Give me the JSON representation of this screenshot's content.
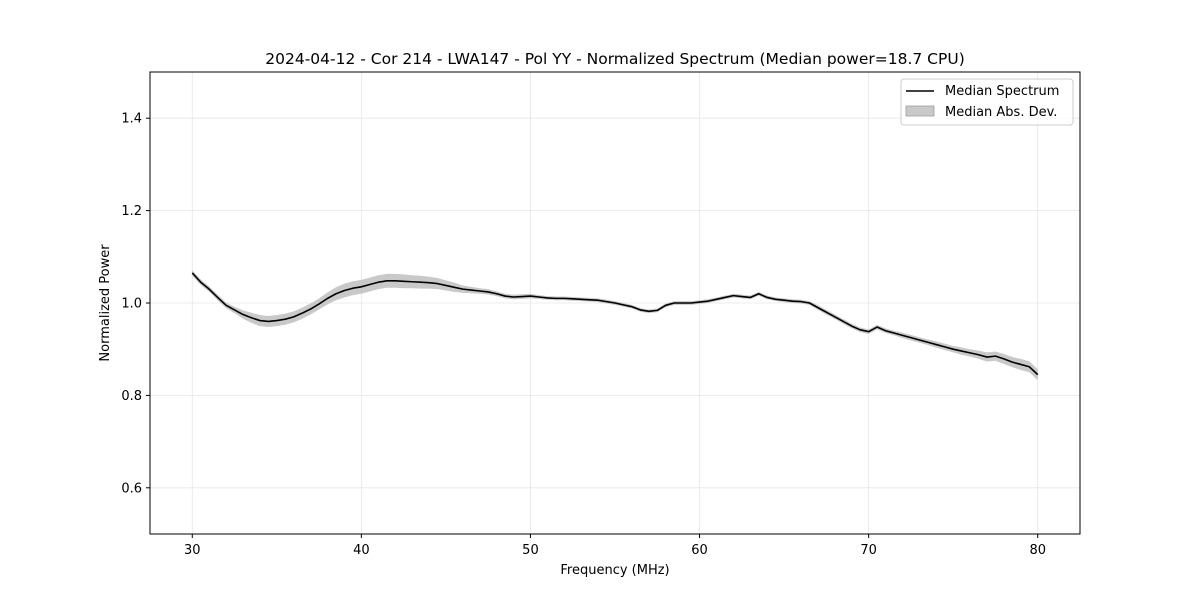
{
  "chart_data": {
    "type": "line",
    "title": "2024-04-12 - Cor 214 - LWA147 - Pol YY - Normalized Spectrum (Median power=18.7 CPU)",
    "xlabel": "Frequency (MHz)",
    "ylabel": "Normalized Power",
    "xlim": [
      27.5,
      82.5
    ],
    "ylim": [
      0.5,
      1.5
    ],
    "xticks": [
      30,
      40,
      50,
      60,
      70,
      80
    ],
    "yticks": [
      0.6,
      0.8,
      1.0,
      1.2,
      1.4
    ],
    "xtick_labels": [
      "30",
      "40",
      "50",
      "60",
      "70",
      "80"
    ],
    "ytick_labels": [
      "0.6",
      "0.8",
      "1.0",
      "1.2",
      "1.4"
    ],
    "grid": true,
    "legend_position": "top-right",
    "colors": {
      "line": "#000000",
      "band": "#c0c0c0",
      "grid": "#e6e6e6"
    },
    "series": [
      {
        "name": "Median Spectrum",
        "kind": "line",
        "x": [
          30.0,
          30.5,
          31.0,
          31.5,
          32.0,
          32.5,
          33.0,
          33.5,
          34.0,
          34.5,
          35.0,
          35.5,
          36.0,
          36.5,
          37.0,
          37.5,
          38.0,
          38.5,
          39.0,
          39.5,
          40.0,
          40.5,
          41.0,
          41.5,
          42.0,
          42.5,
          43.0,
          43.5,
          44.0,
          44.5,
          45.0,
          45.5,
          46.0,
          46.5,
          47.0,
          47.5,
          48.0,
          48.5,
          49.0,
          49.5,
          50.0,
          50.5,
          51.0,
          51.5,
          52.0,
          52.5,
          53.0,
          53.5,
          54.0,
          54.5,
          55.0,
          55.5,
          56.0,
          56.5,
          57.0,
          57.5,
          58.0,
          58.5,
          59.0,
          59.5,
          60.0,
          60.5,
          61.0,
          61.5,
          62.0,
          62.5,
          63.0,
          63.5,
          64.0,
          64.5,
          65.0,
          65.5,
          66.0,
          66.5,
          67.0,
          67.5,
          68.0,
          68.5,
          69.0,
          69.5,
          70.0,
          70.5,
          71.0,
          71.5,
          72.0,
          72.5,
          73.0,
          73.5,
          74.0,
          74.5,
          75.0,
          75.5,
          76.0,
          76.5,
          77.0,
          77.5,
          78.0,
          78.5,
          79.0,
          79.5,
          80.0
        ],
        "values": [
          1.065,
          1.045,
          1.03,
          1.012,
          0.995,
          0.985,
          0.975,
          0.968,
          0.962,
          0.96,
          0.962,
          0.965,
          0.97,
          0.978,
          0.987,
          0.998,
          1.01,
          1.02,
          1.027,
          1.032,
          1.035,
          1.04,
          1.045,
          1.048,
          1.048,
          1.047,
          1.046,
          1.045,
          1.044,
          1.042,
          1.038,
          1.034,
          1.03,
          1.028,
          1.026,
          1.024,
          1.02,
          1.015,
          1.013,
          1.014,
          1.015,
          1.013,
          1.011,
          1.01,
          1.01,
          1.009,
          1.008,
          1.007,
          1.006,
          1.003,
          1.0,
          0.996,
          0.992,
          0.985,
          0.982,
          0.984,
          0.995,
          1.0,
          1.0,
          1.0,
          1.002,
          1.004,
          1.008,
          1.012,
          1.016,
          1.014,
          1.012,
          1.02,
          1.012,
          1.008,
          1.006,
          1.004,
          1.003,
          1.0,
          0.99,
          0.98,
          0.97,
          0.96,
          0.95,
          0.942,
          0.938,
          0.948,
          0.94,
          0.935,
          0.93,
          0.925,
          0.92,
          0.915,
          0.91,
          0.905,
          0.9,
          0.896,
          0.892,
          0.888,
          0.883,
          0.885,
          0.879,
          0.872,
          0.867,
          0.862,
          0.845
        ]
      },
      {
        "name": "Median Abs. Dev.",
        "kind": "band",
        "x": [
          30.0,
          30.5,
          31.0,
          31.5,
          32.0,
          32.5,
          33.0,
          33.5,
          34.0,
          34.5,
          35.0,
          35.5,
          36.0,
          36.5,
          37.0,
          37.5,
          38.0,
          38.5,
          39.0,
          39.5,
          40.0,
          40.5,
          41.0,
          41.5,
          42.0,
          42.5,
          43.0,
          43.5,
          44.0,
          44.5,
          45.0,
          45.5,
          46.0,
          46.5,
          47.0,
          47.5,
          48.0,
          48.5,
          49.0,
          49.5,
          50.0,
          50.5,
          51.0,
          51.5,
          52.0,
          52.5,
          53.0,
          53.5,
          54.0,
          54.5,
          55.0,
          55.5,
          56.0,
          56.5,
          57.0,
          57.5,
          58.0,
          58.5,
          59.0,
          59.5,
          60.0,
          60.5,
          61.0,
          61.5,
          62.0,
          62.5,
          63.0,
          63.5,
          64.0,
          64.5,
          65.0,
          65.5,
          66.0,
          66.5,
          67.0,
          67.5,
          68.0,
          68.5,
          69.0,
          69.5,
          70.0,
          70.5,
          71.0,
          71.5,
          72.0,
          72.5,
          73.0,
          73.5,
          74.0,
          74.5,
          75.0,
          75.5,
          76.0,
          76.5,
          77.0,
          77.5,
          78.0,
          78.5,
          79.0,
          79.5,
          80.0
        ],
        "half_width": [
          0.006,
          0.006,
          0.006,
          0.006,
          0.006,
          0.007,
          0.009,
          0.011,
          0.012,
          0.012,
          0.012,
          0.012,
          0.012,
          0.012,
          0.012,
          0.012,
          0.013,
          0.014,
          0.015,
          0.015,
          0.015,
          0.015,
          0.015,
          0.015,
          0.015,
          0.015,
          0.014,
          0.014,
          0.013,
          0.012,
          0.011,
          0.01,
          0.008,
          0.007,
          0.006,
          0.006,
          0.005,
          0.005,
          0.005,
          0.005,
          0.005,
          0.004,
          0.004,
          0.004,
          0.004,
          0.004,
          0.004,
          0.004,
          0.004,
          0.004,
          0.004,
          0.004,
          0.004,
          0.004,
          0.004,
          0.004,
          0.004,
          0.004,
          0.004,
          0.004,
          0.004,
          0.004,
          0.004,
          0.004,
          0.004,
          0.004,
          0.004,
          0.004,
          0.004,
          0.004,
          0.004,
          0.004,
          0.004,
          0.004,
          0.005,
          0.005,
          0.005,
          0.005,
          0.005,
          0.005,
          0.005,
          0.005,
          0.005,
          0.005,
          0.006,
          0.006,
          0.006,
          0.006,
          0.007,
          0.007,
          0.007,
          0.008,
          0.008,
          0.009,
          0.01,
          0.01,
          0.011,
          0.011,
          0.012,
          0.012,
          0.012
        ]
      }
    ]
  }
}
